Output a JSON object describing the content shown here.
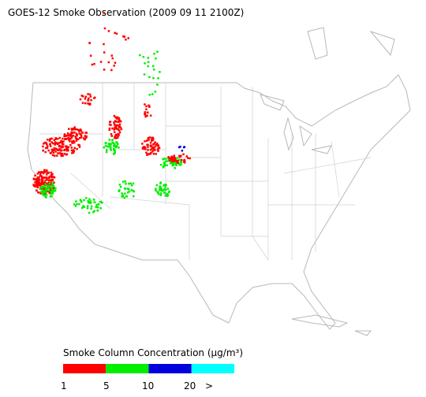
{
  "header": {
    "title": "GOES-12 Smoke Observation (2009 09 11  2100Z)"
  },
  "colorbar": {
    "title": "Smoke Column Concentration (μg/m³)",
    "colors": [
      "#ff0000",
      "#00ee00",
      "#0000dd",
      "#00ffff"
    ],
    "tick_labels": [
      "1",
      "5",
      "10",
      "20",
      ">"
    ]
  }
}
